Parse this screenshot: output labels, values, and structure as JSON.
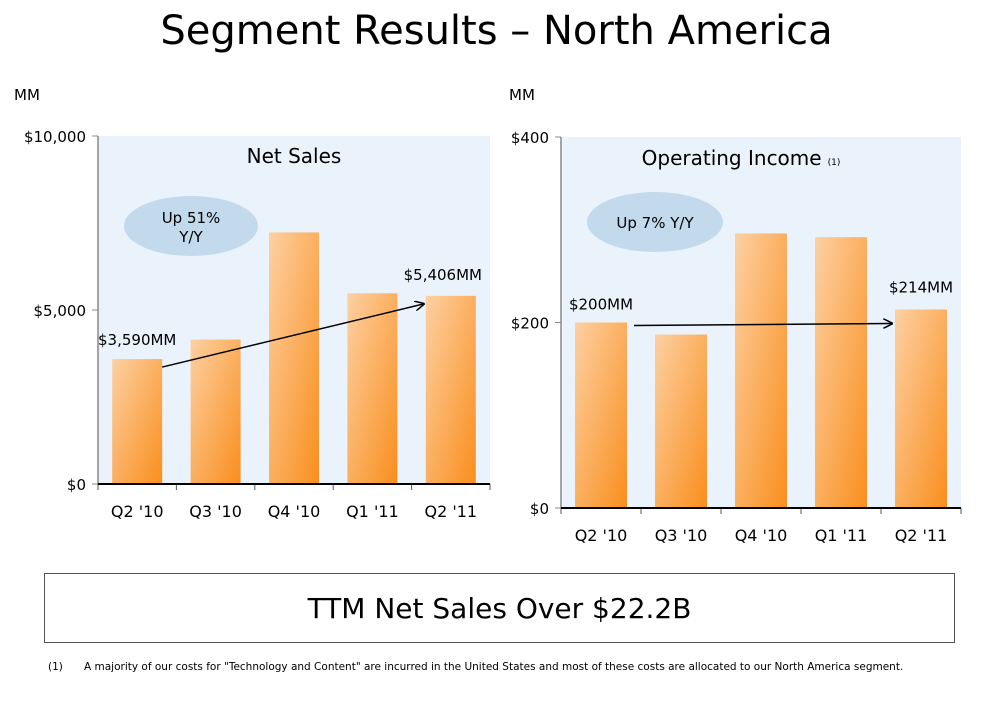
{
  "title": "Segment Results – North America",
  "ttm_text": "TTM Net Sales Over $22.2B",
  "footnote": {
    "marker": "(1)",
    "text": "A majority of our costs for \"Technology and Content\" are incurred in the United States and most of these costs are allocated to our North America segment."
  },
  "colors": {
    "bar_light": "#fdd0a2",
    "bar_dark": "#f98e1d",
    "plot_bg": "#eaf2fb",
    "bubble": "#c3d9ec"
  },
  "chart_data": [
    {
      "type": "bar",
      "title": "Net Sales",
      "unit_label": "MM",
      "categories": [
        "Q2 '10",
        "Q3 '10",
        "Q4 '10",
        "Q1 '11",
        "Q2 '11"
      ],
      "values": [
        3590,
        4150,
        7230,
        5480,
        5406
      ],
      "ylim": [
        0,
        10000
      ],
      "yticks": [
        {
          "v": 0,
          "label": "$0"
        },
        {
          "v": 5000,
          "label": "$5,000"
        },
        {
          "v": 10000,
          "label": "$10,000"
        }
      ],
      "annotations": [
        {
          "text": "$3,590MM",
          "category": "Q2 '10"
        },
        {
          "text": "$5,406MM",
          "category": "Q2 '11"
        }
      ],
      "bubble": [
        "Up 51%",
        "Y/Y"
      ],
      "grid": false
    },
    {
      "type": "bar",
      "title": "Operating Income",
      "title_note": "(1)",
      "unit_label": "MM",
      "categories": [
        "Q2 '10",
        "Q3 '10",
        "Q4 '10",
        "Q1 '11",
        "Q2 '11"
      ],
      "values": [
        200,
        187,
        296,
        292,
        214
      ],
      "ylim": [
        0,
        400
      ],
      "yticks": [
        {
          "v": 0,
          "label": "$0"
        },
        {
          "v": 200,
          "label": "$200"
        },
        {
          "v": 400,
          "label": "$400"
        }
      ],
      "annotations": [
        {
          "text": "$200MM",
          "category": "Q2 '10"
        },
        {
          "text": "$214MM",
          "category": "Q2 '11"
        }
      ],
      "bubble": [
        "Up 7% Y/Y"
      ],
      "grid": false
    }
  ]
}
